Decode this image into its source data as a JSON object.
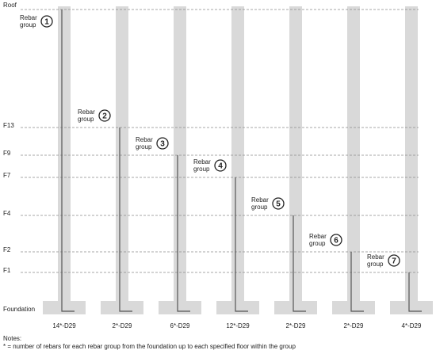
{
  "floors": [
    {
      "id": "roof",
      "label": "Roof"
    },
    {
      "id": "f13",
      "label": "F13"
    },
    {
      "id": "f9",
      "label": "F9"
    },
    {
      "id": "f7",
      "label": "F7"
    },
    {
      "id": "f4",
      "label": "F4"
    },
    {
      "id": "f2",
      "label": "F2"
    },
    {
      "id": "f1",
      "label": "F1"
    },
    {
      "id": "foundation",
      "label": "Foundation"
    }
  ],
  "groups": [
    {
      "number": "1",
      "label_line1": "Rebar",
      "label_line2": "group",
      "top_floor": "Roof",
      "bar_label": "14*-D29"
    },
    {
      "number": "2",
      "label_line1": "Rebar",
      "label_line2": "group",
      "top_floor": "F13",
      "bar_label": "2*-D29"
    },
    {
      "number": "3",
      "label_line1": "Rebar",
      "label_line2": "group",
      "top_floor": "F9",
      "bar_label": "6*-D29"
    },
    {
      "number": "4",
      "label_line1": "Rebar",
      "label_line2": "group",
      "top_floor": "F7",
      "bar_label": "12*-D29"
    },
    {
      "number": "5",
      "label_line1": "Rebar",
      "label_line2": "group",
      "top_floor": "F4",
      "bar_label": "2*-D29"
    },
    {
      "number": "6",
      "label_line1": "Rebar",
      "label_line2": "group",
      "top_floor": "F2",
      "bar_label": "2*-D29"
    },
    {
      "number": "7",
      "label_line1": "Rebar",
      "label_line2": "group",
      "top_floor": "F1",
      "bar_label": "4*-D29"
    }
  ],
  "notes": {
    "title": "Notes:",
    "text": "* = number of rebars for each rebar group from the foundation up to each specified floor within the group"
  },
  "colors": {
    "column": "#d9d9d9",
    "rebar": "#555555",
    "floor_line": "#8a8a8a"
  }
}
